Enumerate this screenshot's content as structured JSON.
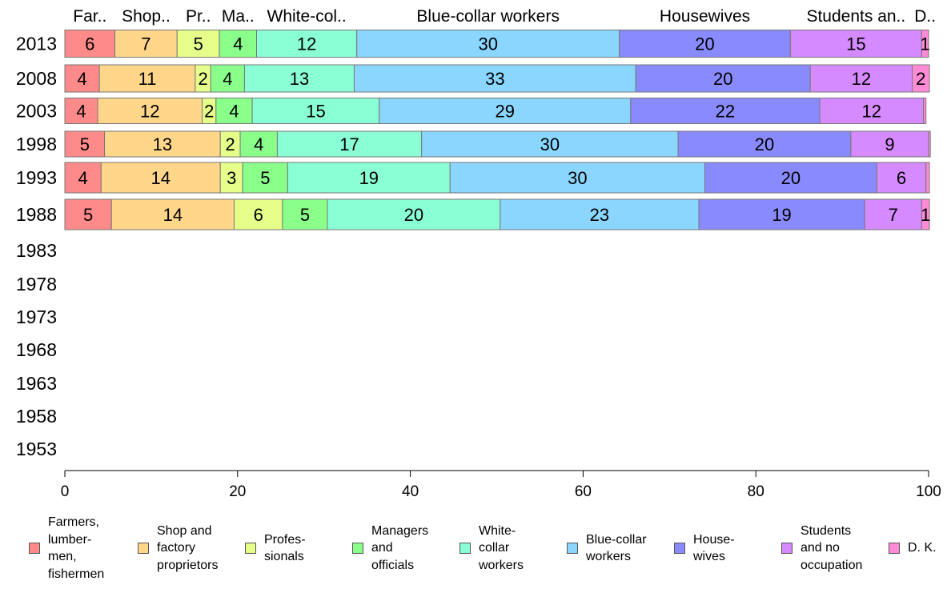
{
  "chart_data": {
    "type": "bar",
    "orientation": "horizontal",
    "stacked": true,
    "categories": [
      "2013",
      "2008",
      "2003",
      "1998",
      "1993",
      "1988",
      "1983",
      "1978",
      "1973",
      "1968",
      "1963",
      "1958",
      "1953"
    ],
    "series": [
      {
        "name": "Farmers, lumbermen, fishermen",
        "legend_label": "Farmers,\nlumber-\nmen,\nfishermen",
        "top_label": "Far..",
        "color": "#FF8A8A",
        "values": [
          5.8,
          4.0,
          3.8,
          4.6,
          4.2,
          5.4,
          null,
          null,
          null,
          null,
          null,
          null,
          null
        ]
      },
      {
        "name": "Shop and factory proprietors",
        "legend_label": "Shop and\nfactory\nproprietors",
        "top_label": "Shop..",
        "color": "#FFD68A",
        "values": [
          7.2,
          11.1,
          12.1,
          13.4,
          13.8,
          14.2,
          null,
          null,
          null,
          null,
          null,
          null,
          null
        ]
      },
      {
        "name": "Professionals",
        "legend_label": "Profes-\nsionals",
        "top_label": "Pr..",
        "color": "#E6FF8A",
        "values": [
          4.9,
          1.8,
          1.6,
          2.3,
          2.6,
          5.6,
          null,
          null,
          null,
          null,
          null,
          null,
          null
        ]
      },
      {
        "name": "Managers and officials",
        "legend_label": "Managers\nand\nofficials",
        "top_label": "Ma..",
        "color": "#8AFF8A",
        "values": [
          4.3,
          3.9,
          4.2,
          4.3,
          5.2,
          5.2,
          null,
          null,
          null,
          null,
          null,
          null,
          null
        ]
      },
      {
        "name": "White-collar workers",
        "legend_label": "White-\ncollar\nworkers",
        "top_label": "White-col..",
        "color": "#8AFFD6",
        "values": [
          11.6,
          12.7,
          14.7,
          16.7,
          18.8,
          20.0,
          null,
          null,
          null,
          null,
          null,
          null,
          null
        ]
      },
      {
        "name": "Blue-collar workers",
        "legend_label": "Blue-collar\nworkers",
        "top_label": "Blue-collar workers",
        "color": "#8AD6FF",
        "values": [
          30.4,
          32.6,
          29.1,
          29.7,
          29.5,
          23.0,
          null,
          null,
          null,
          null,
          null,
          null,
          null
        ]
      },
      {
        "name": "Housewives",
        "legend_label": "House-\nwives",
        "top_label": "Housewives",
        "color": "#8A8AFF",
        "values": [
          19.8,
          20.2,
          21.9,
          20.0,
          19.9,
          19.2,
          null,
          null,
          null,
          null,
          null,
          null,
          null
        ]
      },
      {
        "name": "Students and no occupation",
        "legend_label": "Students\nand no\noccupation",
        "top_label": "Students an..",
        "color": "#D68AFF",
        "values": [
          15.2,
          11.8,
          12.0,
          9.0,
          5.7,
          6.6,
          null,
          null,
          null,
          null,
          null,
          null,
          null
        ]
      },
      {
        "name": "D. K.",
        "legend_label": "D. K.",
        "top_label": "D..",
        "color": "#FF8AD6",
        "values": [
          0.8,
          2.0,
          0.3,
          0.2,
          0.4,
          0.9,
          null,
          null,
          null,
          null,
          null,
          null,
          null
        ]
      }
    ],
    "xlim": [
      0,
      100
    ],
    "xticks": [
      0,
      20,
      40,
      60,
      80,
      100
    ],
    "grid": false,
    "legend_position": "bottom"
  }
}
